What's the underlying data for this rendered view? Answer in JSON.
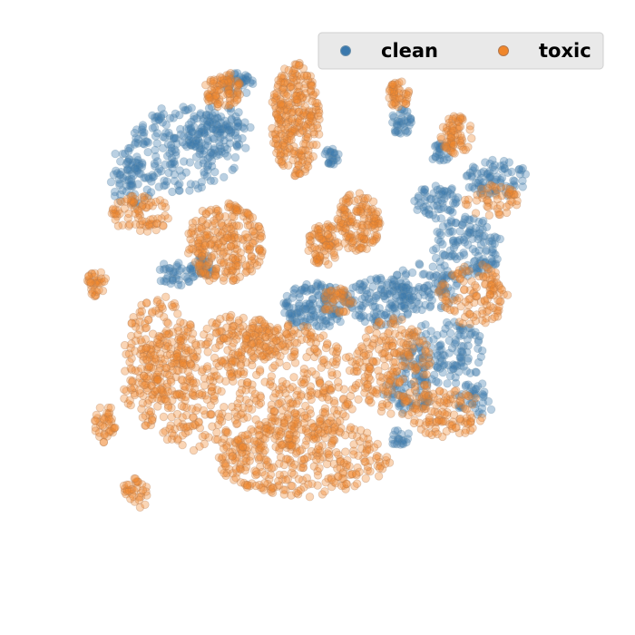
{
  "chart_data": {
    "type": "scatter",
    "title": "",
    "xlabel": "",
    "ylabel": "",
    "axes_visible": false,
    "grid": false,
    "xlim": [
      -100,
      100
    ],
    "ylim": [
      -100,
      100
    ],
    "legend": {
      "placement": "top-right",
      "columns": 2
    },
    "point_alpha": 0.35,
    "series": [
      {
        "name": "clean",
        "color": "#3a78ad",
        "edge_color": "#6a8faa",
        "clusters": [
          {
            "cx": -52,
            "cy": 62,
            "rx": 24,
            "ry": 16,
            "n": 260,
            "seed": 11
          },
          {
            "cx": -36,
            "cy": 68,
            "rx": 12,
            "ry": 10,
            "n": 90,
            "seed": 12
          },
          {
            "cx": -29,
            "cy": 86,
            "rx": 6,
            "ry": 4,
            "n": 35,
            "seed": 13
          },
          {
            "cx": -68,
            "cy": 49,
            "rx": 8,
            "ry": 8,
            "n": 50,
            "seed": 14
          },
          {
            "cx": -52,
            "cy": 16,
            "rx": 7,
            "ry": 5,
            "n": 40,
            "seed": 15
          },
          {
            "cx": -42,
            "cy": 19,
            "rx": 5,
            "ry": 4,
            "n": 30,
            "seed": 16
          },
          {
            "cx": 0,
            "cy": 4,
            "rx": 13,
            "ry": 9,
            "n": 150,
            "seed": 17
          },
          {
            "cx": 23,
            "cy": 6,
            "rx": 12,
            "ry": 9,
            "n": 110,
            "seed": 18
          },
          {
            "cx": 39,
            "cy": 11,
            "rx": 13,
            "ry": 9,
            "n": 110,
            "seed": 19
          },
          {
            "cx": 55,
            "cy": 26,
            "rx": 13,
            "ry": 11,
            "n": 130,
            "seed": 20
          },
          {
            "cx": 66,
            "cy": 51,
            "rx": 12,
            "ry": 7,
            "n": 80,
            "seed": 21
          },
          {
            "cx": 44,
            "cy": 42,
            "rx": 9,
            "ry": 7,
            "n": 60,
            "seed": 22
          },
          {
            "cx": 46,
            "cy": -13,
            "rx": 16,
            "ry": 12,
            "n": 150,
            "seed": 23
          },
          {
            "cx": 33,
            "cy": -28,
            "rx": 9,
            "ry": 8,
            "n": 60,
            "seed": 24
          },
          {
            "cx": 58,
            "cy": -30,
            "rx": 8,
            "ry": 6,
            "n": 40,
            "seed": 25
          },
          {
            "cx": 31,
            "cy": 72,
            "rx": 4,
            "ry": 5,
            "n": 35,
            "seed": 26
          },
          {
            "cx": 86,
            "cy": 65,
            "rx": 5,
            "ry": 3,
            "n": 35,
            "seed": 27
          },
          {
            "cx": 5,
            "cy": 59,
            "rx": 3,
            "ry": 3,
            "n": 25,
            "seed": 28
          },
          {
            "cx": 45,
            "cy": 61,
            "rx": 4,
            "ry": 5,
            "n": 25,
            "seed": 29
          },
          {
            "cx": 78,
            "cy": 80,
            "rx": 3,
            "ry": 2,
            "n": 10,
            "seed": 30
          },
          {
            "cx": 30,
            "cy": -44,
            "rx": 4,
            "ry": 3,
            "n": 20,
            "seed": 31
          }
        ]
      },
      {
        "name": "toxic",
        "color": "#f0862a",
        "edge_color": "#b07850",
        "clusters": [
          {
            "cx": -28,
            "cy": -25,
            "rx": 44,
            "ry": 26,
            "n": 700,
            "seed": 41
          },
          {
            "cx": -5,
            "cy": -52,
            "rx": 32,
            "ry": 14,
            "n": 320,
            "seed": 42
          },
          {
            "cx": -58,
            "cy": -12,
            "rx": 13,
            "ry": 20,
            "n": 160,
            "seed": 43
          },
          {
            "cx": -34,
            "cy": 27,
            "rx": 14,
            "ry": 15,
            "n": 260,
            "seed": 44
          },
          {
            "cx": -8,
            "cy": 73,
            "rx": 9,
            "ry": 21,
            "n": 280,
            "seed": 45
          },
          {
            "cx": 15,
            "cy": 35,
            "rx": 8,
            "ry": 11,
            "n": 140,
            "seed": 46
          },
          {
            "cx": 2,
            "cy": 27,
            "rx": 6,
            "ry": 8,
            "n": 80,
            "seed": 47
          },
          {
            "cx": -35,
            "cy": 84,
            "rx": 7,
            "ry": 7,
            "n": 90,
            "seed": 48
          },
          {
            "cx": 30,
            "cy": 82,
            "rx": 4,
            "ry": 5,
            "n": 45,
            "seed": 49
          },
          {
            "cx": 51,
            "cy": 67,
            "rx": 6,
            "ry": 7,
            "n": 70,
            "seed": 50
          },
          {
            "cx": 28,
            "cy": -18,
            "rx": 14,
            "ry": 18,
            "n": 200,
            "seed": 51
          },
          {
            "cx": 57,
            "cy": 8,
            "rx": 13,
            "ry": 12,
            "n": 120,
            "seed": 52
          },
          {
            "cx": 64,
            "cy": 43,
            "rx": 10,
            "ry": 6,
            "n": 50,
            "seed": 53
          },
          {
            "cx": 47,
            "cy": -35,
            "rx": 14,
            "ry": 9,
            "n": 110,
            "seed": 54
          },
          {
            "cx": -81,
            "cy": 12,
            "rx": 4,
            "ry": 5,
            "n": 35,
            "seed": 55
          },
          {
            "cx": -78,
            "cy": -39,
            "rx": 4,
            "ry": 7,
            "n": 40,
            "seed": 56
          },
          {
            "cx": -67,
            "cy": -65,
            "rx": 5,
            "ry": 6,
            "n": 40,
            "seed": 57
          },
          {
            "cx": -65,
            "cy": 38,
            "rx": 11,
            "ry": 7,
            "n": 80,
            "seed": 58
          },
          {
            "cx": -20,
            "cy": -9,
            "rx": 8,
            "ry": 7,
            "n": 60,
            "seed": 59
          },
          {
            "cx": 7,
            "cy": 6,
            "rx": 6,
            "ry": 5,
            "n": 40,
            "seed": 60
          }
        ]
      }
    ]
  }
}
